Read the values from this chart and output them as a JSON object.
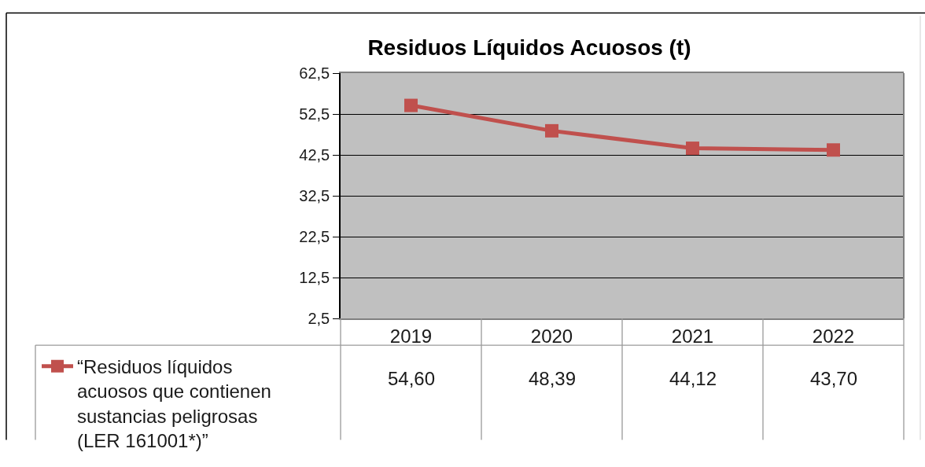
{
  "chart_data": {
    "type": "line",
    "title": "Residuos Líquidos Acuosos (t)",
    "categories": [
      "2019",
      "2020",
      "2021",
      "2022"
    ],
    "series": [
      {
        "name": "“Residuos líquidos acuosos que contienen sustancias peligrosas (LER 161001*)”",
        "color": "#c0504d",
        "values": [
          54.6,
          48.39,
          44.12,
          43.7
        ],
        "value_labels": [
          "54,60",
          "48,39",
          "44,12",
          "43,70"
        ]
      }
    ],
    "ylim": [
      2.5,
      62.5
    ],
    "yticks": [
      {
        "value": 2.5,
        "label": "2,5"
      },
      {
        "value": 12.5,
        "label": "12,5"
      },
      {
        "value": 22.5,
        "label": "22,5"
      },
      {
        "value": 32.5,
        "label": "32,5"
      },
      {
        "value": 42.5,
        "label": "42,5"
      },
      {
        "value": 52.5,
        "label": "52,5"
      },
      {
        "value": 62.5,
        "label": "62,5"
      }
    ],
    "grid": "y",
    "legend": "bottom left",
    "marker": "square",
    "line_style": "solid"
  }
}
